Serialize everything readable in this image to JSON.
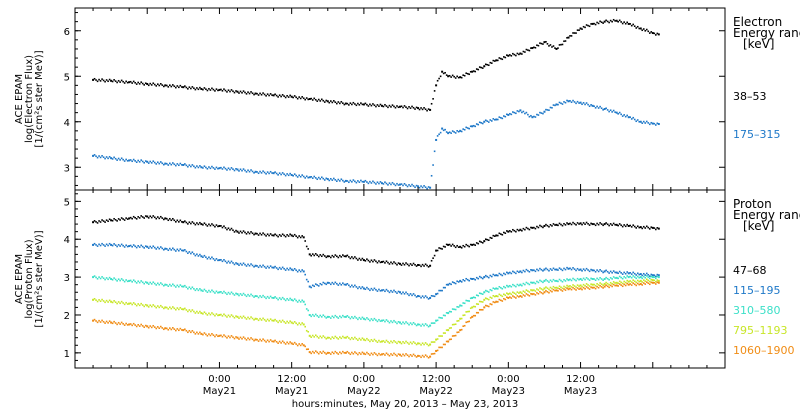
{
  "chart_data": [
    {
      "type": "scatter",
      "ylabel_lines": [
        "ACE EPAM",
        "log(Electron Flux)",
        "[1/(cm²s ster MeV)]"
      ],
      "ylim": [
        2.5,
        6.5
      ],
      "yticks": [
        3,
        4,
        5,
        6
      ],
      "legend": {
        "title_lines": [
          "Electron",
          "Energy ranges",
          "[keV]"
        ],
        "placement": "right"
      },
      "series": [
        {
          "name": "38–53",
          "color": "#000000",
          "x": [
            -21,
            -18,
            -15,
            -12,
            -9,
            -6,
            -3,
            0,
            3,
            6,
            9,
            12,
            15,
            18,
            21,
            24,
            27,
            30,
            33,
            35,
            36,
            37,
            38,
            40,
            42,
            44,
            46,
            48,
            50,
            52,
            54,
            56,
            58,
            60,
            62,
            64,
            66,
            68,
            70,
            72,
            73
          ],
          "y": [
            4.92,
            4.9,
            4.87,
            4.83,
            4.8,
            4.76,
            4.72,
            4.7,
            4.66,
            4.62,
            4.58,
            4.55,
            4.5,
            4.45,
            4.4,
            4.38,
            4.35,
            4.33,
            4.3,
            4.26,
            4.8,
            5.1,
            5.0,
            4.98,
            5.1,
            5.22,
            5.35,
            5.45,
            5.5,
            5.62,
            5.75,
            5.6,
            5.85,
            6.05,
            6.15,
            6.2,
            6.22,
            6.15,
            6.05,
            5.95,
            5.92
          ]
        },
        {
          "name": "175–315",
          "color": "#1e78c8",
          "x": [
            -21,
            -18,
            -15,
            -12,
            -9,
            -6,
            -3,
            0,
            3,
            6,
            9,
            12,
            15,
            18,
            21,
            24,
            27,
            30,
            33,
            35,
            36,
            37,
            38,
            40,
            42,
            44,
            46,
            48,
            50,
            52,
            54,
            56,
            58,
            60,
            62,
            64,
            66,
            68,
            70,
            72,
            73
          ],
          "y": [
            3.25,
            3.2,
            3.15,
            3.12,
            3.08,
            3.05,
            3.0,
            2.98,
            2.95,
            2.9,
            2.87,
            2.83,
            2.78,
            2.74,
            2.7,
            2.68,
            2.65,
            2.62,
            2.58,
            2.55,
            3.6,
            3.85,
            3.75,
            3.8,
            3.9,
            4.0,
            4.05,
            4.15,
            4.25,
            4.1,
            4.22,
            4.38,
            4.45,
            4.42,
            4.35,
            4.28,
            4.2,
            4.1,
            4.0,
            3.96,
            3.95
          ]
        }
      ]
    },
    {
      "type": "scatter",
      "ylabel_lines": [
        "ACE EPAM",
        "log(Proton Flux)",
        "[1/(cm²s ster MeV)]"
      ],
      "ylim": [
        0.6,
        5.3
      ],
      "yticks": [
        1,
        2,
        3,
        4,
        5
      ],
      "legend": {
        "title_lines": [
          "Proton",
          "Energy ranges",
          "[keV]"
        ],
        "placement": "right"
      },
      "series": [
        {
          "name": "47–68",
          "color": "#000000",
          "x": [
            -21,
            -18,
            -15,
            -12,
            -9,
            -6,
            -3,
            0,
            3,
            6,
            9,
            12,
            14,
            15,
            18,
            21,
            24,
            27,
            30,
            33,
            35,
            36,
            38,
            40,
            42,
            44,
            46,
            48,
            50,
            52,
            54,
            56,
            58,
            60,
            62,
            64,
            66,
            68,
            70,
            72,
            73
          ],
          "y": [
            4.45,
            4.5,
            4.55,
            4.6,
            4.55,
            4.45,
            4.4,
            4.35,
            4.2,
            4.15,
            4.1,
            4.1,
            4.05,
            3.6,
            3.55,
            3.55,
            3.45,
            3.4,
            3.35,
            3.32,
            3.3,
            3.7,
            3.85,
            3.8,
            3.85,
            3.95,
            4.1,
            4.2,
            4.25,
            4.3,
            4.35,
            4.38,
            4.4,
            4.42,
            4.4,
            4.4,
            4.38,
            4.35,
            4.32,
            4.3,
            4.28
          ]
        },
        {
          "name": "115–195",
          "color": "#1e78c8",
          "x": [
            -21,
            -18,
            -15,
            -12,
            -9,
            -6,
            -3,
            0,
            3,
            6,
            9,
            12,
            14,
            15,
            18,
            21,
            24,
            27,
            30,
            33,
            35,
            36,
            38,
            40,
            42,
            44,
            46,
            48,
            50,
            52,
            54,
            56,
            58,
            60,
            62,
            64,
            66,
            68,
            70,
            72,
            73
          ],
          "y": [
            3.85,
            3.85,
            3.82,
            3.8,
            3.75,
            3.7,
            3.55,
            3.45,
            3.35,
            3.3,
            3.25,
            3.2,
            3.15,
            2.75,
            2.85,
            2.8,
            2.7,
            2.65,
            2.6,
            2.5,
            2.45,
            2.55,
            2.8,
            2.9,
            2.95,
            3.0,
            3.05,
            3.1,
            3.15,
            3.18,
            3.2,
            3.2,
            3.22,
            3.2,
            3.18,
            3.15,
            3.12,
            3.1,
            3.08,
            3.05,
            3.05
          ]
        },
        {
          "name": "310–580",
          "color": "#3ce0c8",
          "x": [
            -21,
            -18,
            -15,
            -12,
            -9,
            -6,
            -3,
            0,
            3,
            6,
            9,
            12,
            14,
            15,
            18,
            21,
            24,
            27,
            30,
            33,
            35,
            36,
            38,
            40,
            42,
            44,
            46,
            48,
            50,
            52,
            54,
            56,
            58,
            60,
            62,
            64,
            66,
            68,
            70,
            72,
            73
          ],
          "y": [
            3.0,
            2.95,
            2.9,
            2.85,
            2.8,
            2.75,
            2.65,
            2.6,
            2.55,
            2.5,
            2.45,
            2.4,
            2.35,
            2.0,
            1.95,
            1.95,
            1.9,
            1.85,
            1.8,
            1.75,
            1.72,
            1.85,
            2.05,
            2.25,
            2.45,
            2.6,
            2.7,
            2.75,
            2.8,
            2.85,
            2.9,
            2.9,
            2.92,
            2.95,
            2.95,
            2.95,
            2.98,
            3.0,
            3.0,
            3.0,
            3.0
          ]
        },
        {
          "name": "795–1193",
          "color": "#c8e628",
          "x": [
            -21,
            -18,
            -15,
            -12,
            -9,
            -6,
            -3,
            0,
            3,
            6,
            9,
            12,
            14,
            15,
            18,
            21,
            24,
            27,
            30,
            33,
            35,
            36,
            38,
            40,
            42,
            44,
            46,
            48,
            50,
            52,
            54,
            56,
            58,
            60,
            62,
            64,
            66,
            68,
            70,
            72,
            73
          ],
          "y": [
            2.4,
            2.35,
            2.3,
            2.25,
            2.2,
            2.15,
            2.05,
            2.0,
            1.95,
            1.9,
            1.85,
            1.8,
            1.75,
            1.45,
            1.4,
            1.4,
            1.35,
            1.3,
            1.28,
            1.25,
            1.22,
            1.35,
            1.6,
            1.9,
            2.2,
            2.4,
            2.5,
            2.55,
            2.6,
            2.65,
            2.7,
            2.72,
            2.75,
            2.78,
            2.8,
            2.82,
            2.85,
            2.88,
            2.9,
            2.92,
            2.9
          ]
        },
        {
          "name": "1060–1900",
          "color": "#f08c14",
          "x": [
            -21,
            -18,
            -15,
            -12,
            -9,
            -6,
            -3,
            0,
            3,
            6,
            9,
            12,
            14,
            15,
            18,
            21,
            24,
            27,
            30,
            33,
            35,
            36,
            38,
            40,
            42,
            44,
            46,
            48,
            50,
            52,
            54,
            56,
            58,
            60,
            62,
            64,
            66,
            68,
            70,
            72,
            73
          ],
          "y": [
            1.85,
            1.8,
            1.75,
            1.7,
            1.65,
            1.6,
            1.5,
            1.45,
            1.4,
            1.35,
            1.3,
            1.25,
            1.2,
            1.02,
            1.0,
            1.0,
            0.98,
            0.96,
            0.95,
            0.92,
            0.9,
            1.05,
            1.3,
            1.6,
            1.95,
            2.2,
            2.35,
            2.45,
            2.5,
            2.55,
            2.6,
            2.65,
            2.68,
            2.7,
            2.72,
            2.75,
            2.78,
            2.8,
            2.82,
            2.85,
            2.85
          ]
        }
      ]
    }
  ],
  "x_axis": {
    "range_hours": [
      -24,
      84
    ],
    "ticks": [
      {
        "value": 0,
        "time": "0:00",
        "date": "May21"
      },
      {
        "value": 12,
        "time": "12:00",
        "date": "May21"
      },
      {
        "value": 24,
        "time": "0:00",
        "date": "May22"
      },
      {
        "value": 36,
        "time": "12:00",
        "date": "May22"
      },
      {
        "value": 48,
        "time": "0:00",
        "date": "May23"
      },
      {
        "value": 60,
        "time": "12:00",
        "date": "May23"
      }
    ],
    "label": "hours:minutes, May 20, 2013 – May 23, 2013"
  }
}
